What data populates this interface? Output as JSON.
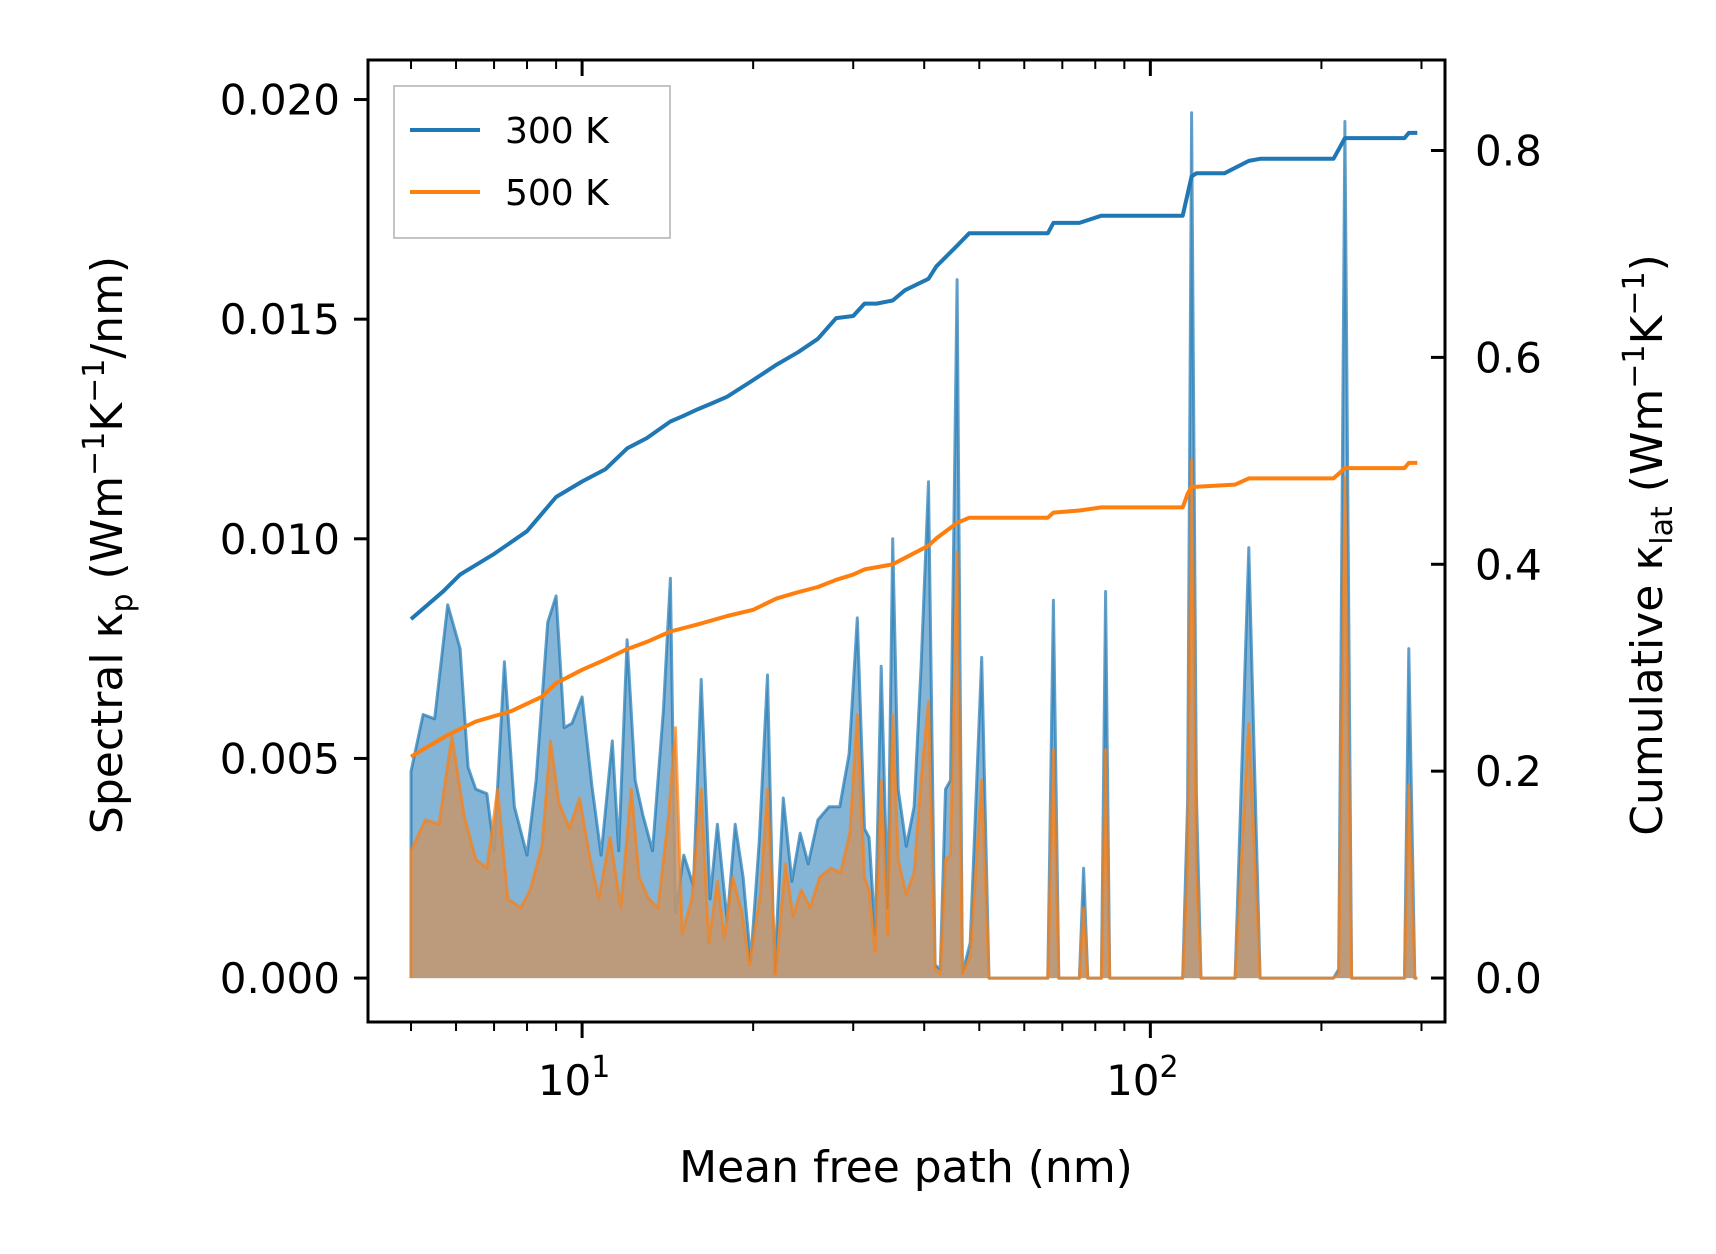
{
  "chart_data": {
    "type": "line",
    "title": "",
    "xlabel": "Mean free path (nm)",
    "ylabel_left": {
      "prefix": "Spectral κ",
      "sub": "p",
      "mid1": " (Wm",
      "sup1": "−1",
      "mid2": "K",
      "sup2": "−1",
      "suffix": "/nm)"
    },
    "ylabel_right": {
      "prefix": "Cumulative κ",
      "sub": "lat",
      "mid1": " (Wm",
      "sup1": "−1",
      "mid2": "K",
      "sup2": "−1",
      "suffix": ")"
    },
    "xscale": "log",
    "xlim": [
      4.2,
      330
    ],
    "ylim_left": [
      -0.001,
      0.0209
    ],
    "ylim_right": [
      -0.0425,
      0.8875
    ],
    "x_major_ticks": [
      {
        "value": 10,
        "base": "10",
        "exp": "1"
      },
      {
        "value": 100,
        "base": "10",
        "exp": "2"
      }
    ],
    "y_left_ticks": [
      "0.000",
      "0.005",
      "0.010",
      "0.015",
      "0.020"
    ],
    "y_left_tick_values": [
      0.0,
      0.005,
      0.01,
      0.015,
      0.02
    ],
    "y_right_ticks": [
      "0.0",
      "0.2",
      "0.4",
      "0.6",
      "0.8"
    ],
    "y_right_tick_values": [
      0.0,
      0.2,
      0.4,
      0.6,
      0.8
    ],
    "legend": {
      "position": "top-left",
      "entries": [
        {
          "label": "300 K",
          "color": "#1f77b4"
        },
        {
          "label": "500 K",
          "color": "#ff7f0e"
        }
      ]
    },
    "series": [
      {
        "name": "300 K",
        "color": "#1f77b4",
        "fill_color": "#1f77b4",
        "spectral": [
          [
            5.0,
            0.0
          ],
          [
            5.0,
            0.0047
          ],
          [
            5.25,
            0.006
          ],
          [
            5.5,
            0.0059
          ],
          [
            5.8,
            0.0085
          ],
          [
            6.1,
            0.0075
          ],
          [
            6.3,
            0.0048
          ],
          [
            6.5,
            0.0043
          ],
          [
            6.8,
            0.0042
          ],
          [
            7.0,
            0.0029
          ],
          [
            7.3,
            0.0072
          ],
          [
            7.6,
            0.0039
          ],
          [
            8.0,
            0.0028
          ],
          [
            8.3,
            0.0045
          ],
          [
            8.7,
            0.0081
          ],
          [
            9.0,
            0.0087
          ],
          [
            9.3,
            0.0057
          ],
          [
            9.6,
            0.0058
          ],
          [
            10.0,
            0.0064
          ],
          [
            10.4,
            0.0044
          ],
          [
            10.8,
            0.0028
          ],
          [
            11.3,
            0.0054
          ],
          [
            11.6,
            0.0029
          ],
          [
            12.0,
            0.0077
          ],
          [
            12.4,
            0.0045
          ],
          [
            12.8,
            0.0037
          ],
          [
            13.3,
            0.0029
          ],
          [
            13.9,
            0.0061
          ],
          [
            14.3,
            0.0091
          ],
          [
            14.6,
            0.0015
          ],
          [
            15.1,
            0.0028
          ],
          [
            15.7,
            0.0021
          ],
          [
            16.2,
            0.0068
          ],
          [
            16.8,
            0.0018
          ],
          [
            17.3,
            0.0035
          ],
          [
            18.0,
            0.0013
          ],
          [
            18.6,
            0.0035
          ],
          [
            19.2,
            0.0023
          ],
          [
            19.8,
            0.0004
          ],
          [
            20.5,
            0.0031
          ],
          [
            21.2,
            0.0069
          ],
          [
            21.8,
            0.0001
          ],
          [
            22.6,
            0.0041
          ],
          [
            23.4,
            0.0022
          ],
          [
            24.2,
            0.0033
          ],
          [
            25.0,
            0.0026
          ],
          [
            26.0,
            0.0036
          ],
          [
            27.2,
            0.0039
          ],
          [
            28.4,
            0.0039
          ],
          [
            29.5,
            0.0051
          ],
          [
            30.5,
            0.0082
          ],
          [
            31.4,
            0.0034
          ],
          [
            32.0,
            0.0032
          ],
          [
            32.8,
            0.001
          ],
          [
            33.6,
            0.0071
          ],
          [
            34.5,
            0.0016
          ],
          [
            35.2,
            0.01
          ],
          [
            36.0,
            0.0043
          ],
          [
            37.2,
            0.003
          ],
          [
            38.4,
            0.0039
          ],
          [
            39.5,
            0.0071
          ],
          [
            40.7,
            0.0113
          ],
          [
            41.8,
            0.0003
          ],
          [
            42.7,
            0.0002
          ],
          [
            43.6,
            0.0043
          ],
          [
            44.5,
            0.0045
          ],
          [
            45.7,
            0.0159
          ],
          [
            46.7,
            0.0001
          ],
          [
            48.2,
            0.0008
          ],
          [
            50.5,
            0.0073
          ],
          [
            52.0,
            0.0
          ],
          [
            66.0,
            0.0
          ],
          [
            67.5,
            0.0086
          ],
          [
            69.0,
            0.0
          ],
          [
            75.0,
            0.0
          ],
          [
            76.3,
            0.0025
          ],
          [
            77.6,
            0.0
          ],
          [
            82.0,
            0.0
          ],
          [
            83.4,
            0.0088
          ],
          [
            84.8,
            0.0
          ],
          [
            114.0,
            0.0
          ],
          [
            116.3,
            0.004
          ],
          [
            118.2,
            0.0197
          ],
          [
            120.5,
            0.0042
          ],
          [
            122.8,
            0.0
          ],
          [
            141.0,
            0.0
          ],
          [
            149.0,
            0.0098
          ],
          [
            156.0,
            0.0
          ],
          [
            210.0,
            0.0
          ],
          [
            214.5,
            0.0002
          ],
          [
            220.0,
            0.0195
          ],
          [
            226.0,
            0.0
          ],
          [
            280.0,
            0.0
          ],
          [
            285.0,
            0.0075
          ],
          [
            292.0,
            0.0
          ],
          [
            295.0,
            0.0
          ]
        ],
        "cumulative": [
          [
            5.0,
            0.347
          ],
          [
            5.7,
            0.374
          ],
          [
            6.1,
            0.39
          ],
          [
            7.0,
            0.41
          ],
          [
            8.0,
            0.432
          ],
          [
            9.0,
            0.465
          ],
          [
            10.0,
            0.48
          ],
          [
            11.0,
            0.492
          ],
          [
            12.0,
            0.512
          ],
          [
            13.0,
            0.522
          ],
          [
            14.3,
            0.538
          ],
          [
            15.0,
            0.543
          ],
          [
            16.0,
            0.55
          ],
          [
            17.0,
            0.556
          ],
          [
            18.0,
            0.562
          ],
          [
            20.0,
            0.578
          ],
          [
            22.0,
            0.593
          ],
          [
            24.0,
            0.605
          ],
          [
            26.0,
            0.618
          ],
          [
            28.0,
            0.638
          ],
          [
            30.0,
            0.64
          ],
          [
            31.4,
            0.652
          ],
          [
            33.0,
            0.652
          ],
          [
            35.2,
            0.655
          ],
          [
            37.0,
            0.665
          ],
          [
            40.7,
            0.676
          ],
          [
            42.0,
            0.688
          ],
          [
            45.7,
            0.708
          ],
          [
            48.0,
            0.72
          ],
          [
            52.0,
            0.72
          ],
          [
            66.0,
            0.72
          ],
          [
            67.5,
            0.73
          ],
          [
            75.0,
            0.73
          ],
          [
            82.0,
            0.737
          ],
          [
            84.8,
            0.737
          ],
          [
            114.0,
            0.737
          ],
          [
            116.3,
            0.758
          ],
          [
            118.2,
            0.775
          ],
          [
            120.5,
            0.778
          ],
          [
            135.0,
            0.778
          ],
          [
            149.0,
            0.79
          ],
          [
            156.0,
            0.792
          ],
          [
            210.0,
            0.792
          ],
          [
            220.0,
            0.812
          ],
          [
            280.0,
            0.812
          ],
          [
            285.0,
            0.817
          ],
          [
            295.0,
            0.817
          ]
        ]
      },
      {
        "name": "500 K",
        "color": "#ff7f0e",
        "fill_color": "#c6976d",
        "spectral": [
          [
            5.0,
            0.0
          ],
          [
            5.0,
            0.0029
          ],
          [
            5.3,
            0.0036
          ],
          [
            5.6,
            0.0035
          ],
          [
            5.9,
            0.0055
          ],
          [
            6.2,
            0.0037
          ],
          [
            6.5,
            0.0027
          ],
          [
            6.8,
            0.0025
          ],
          [
            7.1,
            0.0043
          ],
          [
            7.4,
            0.0018
          ],
          [
            7.8,
            0.0016
          ],
          [
            8.1,
            0.002
          ],
          [
            8.5,
            0.003
          ],
          [
            8.8,
            0.0054
          ],
          [
            9.1,
            0.004
          ],
          [
            9.5,
            0.0034
          ],
          [
            9.9,
            0.0041
          ],
          [
            10.3,
            0.0028
          ],
          [
            10.7,
            0.0018
          ],
          [
            11.2,
            0.0032
          ],
          [
            11.7,
            0.0016
          ],
          [
            12.2,
            0.0043
          ],
          [
            12.6,
            0.0023
          ],
          [
            13.1,
            0.0018
          ],
          [
            13.6,
            0.0016
          ],
          [
            14.2,
            0.0037
          ],
          [
            14.6,
            0.0057
          ],
          [
            15.0,
            0.001
          ],
          [
            15.6,
            0.0018
          ],
          [
            16.2,
            0.0043
          ],
          [
            16.7,
            0.0008
          ],
          [
            17.3,
            0.0022
          ],
          [
            17.8,
            0.0009
          ],
          [
            18.4,
            0.0023
          ],
          [
            19.1,
            0.0015
          ],
          [
            19.7,
            0.0003
          ],
          [
            20.6,
            0.0019
          ],
          [
            21.2,
            0.0043
          ],
          [
            21.9,
            0.0001
          ],
          [
            22.8,
            0.0026
          ],
          [
            23.5,
            0.0014
          ],
          [
            24.3,
            0.002
          ],
          [
            25.2,
            0.0016
          ],
          [
            26.2,
            0.0023
          ],
          [
            27.4,
            0.0025
          ],
          [
            28.5,
            0.0024
          ],
          [
            29.6,
            0.0033
          ],
          [
            30.5,
            0.006
          ],
          [
            31.4,
            0.0023
          ],
          [
            32.0,
            0.002
          ],
          [
            32.8,
            0.0006
          ],
          [
            33.6,
            0.0045
          ],
          [
            34.5,
            0.001
          ],
          [
            35.2,
            0.006
          ],
          [
            36.0,
            0.0027
          ],
          [
            37.2,
            0.0019
          ],
          [
            38.4,
            0.0024
          ],
          [
            39.5,
            0.0045
          ],
          [
            40.7,
            0.0063
          ],
          [
            41.8,
            0.0002
          ],
          [
            42.7,
            0.0001
          ],
          [
            43.6,
            0.0027
          ],
          [
            44.5,
            0.0028
          ],
          [
            45.7,
            0.0097
          ],
          [
            46.7,
            0.0001
          ],
          [
            48.2,
            0.0005
          ],
          [
            50.5,
            0.0045
          ],
          [
            52.0,
            0.0
          ],
          [
            66.0,
            0.0
          ],
          [
            67.5,
            0.0052
          ],
          [
            69.0,
            0.0
          ],
          [
            75.0,
            0.0
          ],
          [
            76.3,
            0.0016
          ],
          [
            77.6,
            0.0
          ],
          [
            82.0,
            0.0
          ],
          [
            83.4,
            0.0052
          ],
          [
            84.8,
            0.0
          ],
          [
            114.0,
            0.0
          ],
          [
            116.3,
            0.0026
          ],
          [
            118.2,
            0.0118
          ],
          [
            120.5,
            0.0025
          ],
          [
            122.8,
            0.0
          ],
          [
            141.0,
            0.0
          ],
          [
            149.0,
            0.0058
          ],
          [
            156.0,
            0.0
          ],
          [
            210.0,
            0.0
          ],
          [
            214.5,
            0.0001
          ],
          [
            220.0,
            0.0114
          ],
          [
            226.0,
            0.0
          ],
          [
            280.0,
            0.0
          ],
          [
            285.0,
            0.0044
          ],
          [
            292.0,
            0.0
          ],
          [
            295.0,
            0.0
          ]
        ],
        "cumulative": [
          [
            5.0,
            0.214
          ],
          [
            5.8,
            0.235
          ],
          [
            6.5,
            0.248
          ],
          [
            7.5,
            0.258
          ],
          [
            8.5,
            0.272
          ],
          [
            9.0,
            0.285
          ],
          [
            10.0,
            0.298
          ],
          [
            11.0,
            0.308
          ],
          [
            12.0,
            0.318
          ],
          [
            13.0,
            0.325
          ],
          [
            14.3,
            0.335
          ],
          [
            16.0,
            0.342
          ],
          [
            18.0,
            0.35
          ],
          [
            20.0,
            0.356
          ],
          [
            22.0,
            0.367
          ],
          [
            24.0,
            0.373
          ],
          [
            26.0,
            0.378
          ],
          [
            28.0,
            0.385
          ],
          [
            30.0,
            0.39
          ],
          [
            31.4,
            0.395
          ],
          [
            35.2,
            0.4
          ],
          [
            40.7,
            0.418
          ],
          [
            42.0,
            0.425
          ],
          [
            45.7,
            0.44
          ],
          [
            48.0,
            0.445
          ],
          [
            52.0,
            0.445
          ],
          [
            66.0,
            0.445
          ],
          [
            67.5,
            0.45
          ],
          [
            75.0,
            0.452
          ],
          [
            82.0,
            0.455
          ],
          [
            84.8,
            0.455
          ],
          [
            114.0,
            0.455
          ],
          [
            116.3,
            0.468
          ],
          [
            118.2,
            0.475
          ],
          [
            120.5,
            0.475
          ],
          [
            141.0,
            0.477
          ],
          [
            149.0,
            0.483
          ],
          [
            156.0,
            0.483
          ],
          [
            210.0,
            0.483
          ],
          [
            220.0,
            0.493
          ],
          [
            280.0,
            0.493
          ],
          [
            285.0,
            0.498
          ],
          [
            295.0,
            0.498
          ]
        ]
      }
    ]
  }
}
